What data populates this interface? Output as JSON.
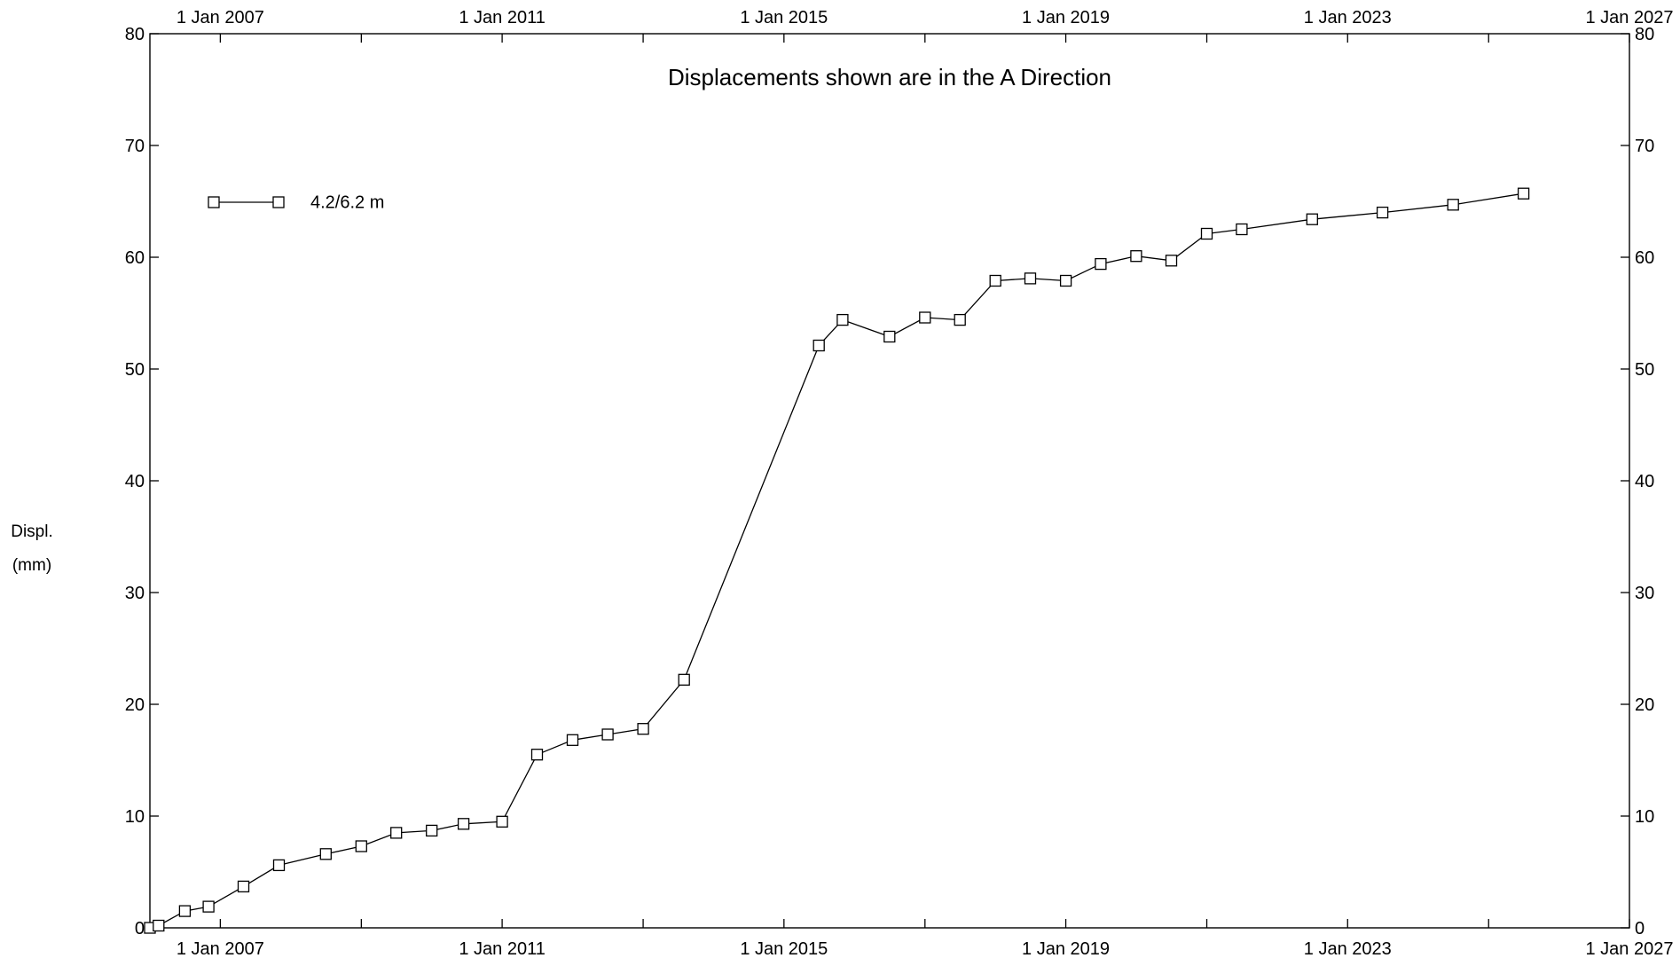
{
  "chart_data": {
    "type": "line",
    "title": "Displacements shown are in the  A Direction",
    "ylabel_lines": [
      "Displ.",
      "(mm)"
    ],
    "xlabel": "",
    "ylim": [
      0,
      80
    ],
    "xlim": [
      "2006-01-01",
      "2027-01-01"
    ],
    "y_ticks": [
      0,
      10,
      20,
      30,
      40,
      50,
      60,
      70,
      80
    ],
    "x_ticks": [
      "2007-01-01",
      "2011-01-01",
      "2015-01-01",
      "2019-01-01",
      "2023-01-01",
      "2027-01-01"
    ],
    "x_tick_labels": [
      "1 Jan 2007",
      "1 Jan 2011",
      "1 Jan 2015",
      "1 Jan 2019",
      "1 Jan 2023",
      "1 Jan 2027"
    ],
    "x_minor_ticks": [
      "2009-01-01",
      "2013-01-01",
      "2017-01-01",
      "2021-01-01",
      "2025-01-01"
    ],
    "grid": false,
    "legend_position": "top-left",
    "series": [
      {
        "name": "4.2/6.2 m",
        "color": "#000000",
        "marker": "square",
        "points": [
          {
            "date": "2006-01-01",
            "value": 0.0
          },
          {
            "date": "2006-02-15",
            "value": 0.2
          },
          {
            "date": "2006-07-01",
            "value": 1.5
          },
          {
            "date": "2006-11-01",
            "value": 1.9
          },
          {
            "date": "2007-05-01",
            "value": 3.7
          },
          {
            "date": "2007-11-01",
            "value": 5.6
          },
          {
            "date": "2008-07-01",
            "value": 6.6
          },
          {
            "date": "2009-01-01",
            "value": 7.3
          },
          {
            "date": "2009-07-01",
            "value": 8.5
          },
          {
            "date": "2010-01-01",
            "value": 8.7
          },
          {
            "date": "2010-06-15",
            "value": 9.3
          },
          {
            "date": "2011-01-01",
            "value": 9.5
          },
          {
            "date": "2011-07-01",
            "value": 15.5
          },
          {
            "date": "2012-01-01",
            "value": 16.8
          },
          {
            "date": "2012-07-01",
            "value": 17.3
          },
          {
            "date": "2013-01-01",
            "value": 17.8
          },
          {
            "date": "2013-08-01",
            "value": 22.2
          },
          {
            "date": "2015-07-01",
            "value": 52.1
          },
          {
            "date": "2015-11-01",
            "value": 54.4
          },
          {
            "date": "2016-07-01",
            "value": 52.9
          },
          {
            "date": "2017-01-01",
            "value": 54.6
          },
          {
            "date": "2017-07-01",
            "value": 54.4
          },
          {
            "date": "2018-01-01",
            "value": 57.9
          },
          {
            "date": "2018-07-01",
            "value": 58.1
          },
          {
            "date": "2019-01-01",
            "value": 57.9
          },
          {
            "date": "2019-07-01",
            "value": 59.4
          },
          {
            "date": "2020-01-01",
            "value": 60.1
          },
          {
            "date": "2020-07-01",
            "value": 59.7
          },
          {
            "date": "2021-01-01",
            "value": 62.1
          },
          {
            "date": "2021-07-01",
            "value": 62.5
          },
          {
            "date": "2022-07-01",
            "value": 63.4
          },
          {
            "date": "2023-07-01",
            "value": 64.0
          },
          {
            "date": "2024-07-01",
            "value": 64.7
          },
          {
            "date": "2025-07-01",
            "value": 65.7
          }
        ]
      }
    ]
  }
}
